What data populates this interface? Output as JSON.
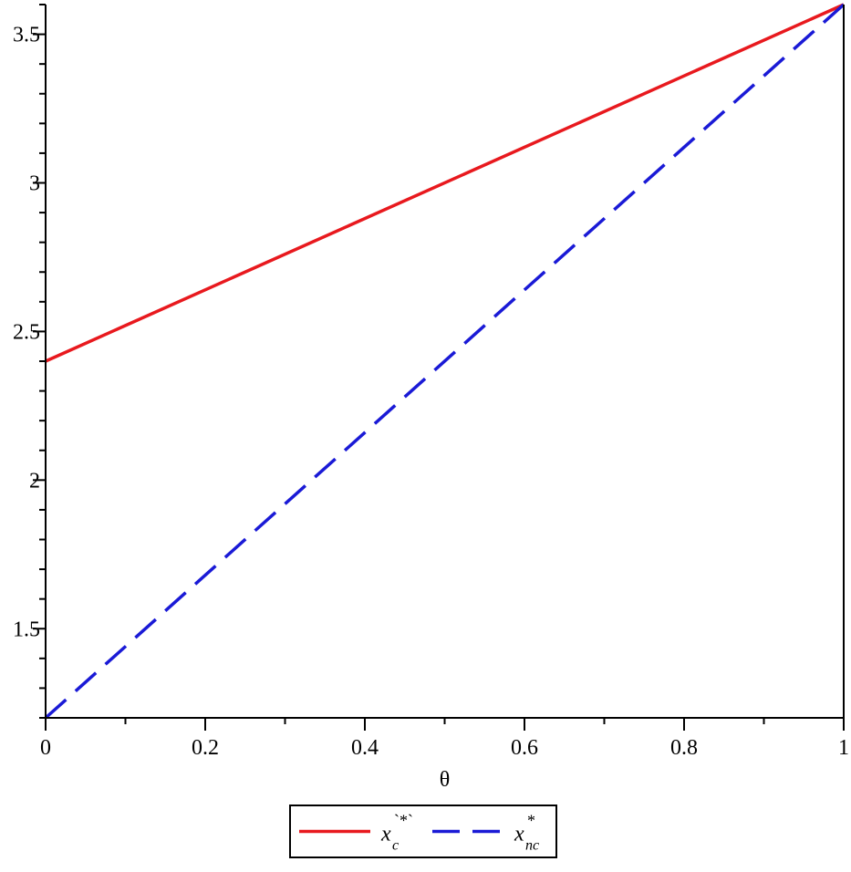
{
  "chart_data": {
    "type": "line",
    "title": "",
    "xlabel": "θ",
    "ylabel": "",
    "xlim": [
      0,
      1
    ],
    "ylim": [
      1.2,
      3.6
    ],
    "xticks": [
      0,
      0.2,
      0.4,
      0.6,
      0.8,
      1
    ],
    "xtick_labels": [
      "0",
      "0.2",
      "0.4",
      "0.6",
      "0.8",
      "1"
    ],
    "yticks": [
      1.5,
      2,
      2.5,
      3,
      3.5
    ],
    "ytick_labels": [
      "1.5",
      "2",
      "2.5",
      "3",
      "3.5"
    ],
    "grid": false,
    "legend_position": "bottom-center",
    "series": [
      {
        "legend_base": "x",
        "legend_sub": "c",
        "legend_sup": "`*`",
        "color": "#e8191e",
        "style": "solid",
        "x": [
          0,
          1
        ],
        "values": [
          2.4,
          3.6
        ]
      },
      {
        "legend_base": "x",
        "legend_sub": "nc",
        "legend_sup": "*",
        "color": "#1a1ad6",
        "style": "dashed",
        "x": [
          0,
          1
        ],
        "values": [
          1.2,
          3.6
        ]
      }
    ]
  }
}
